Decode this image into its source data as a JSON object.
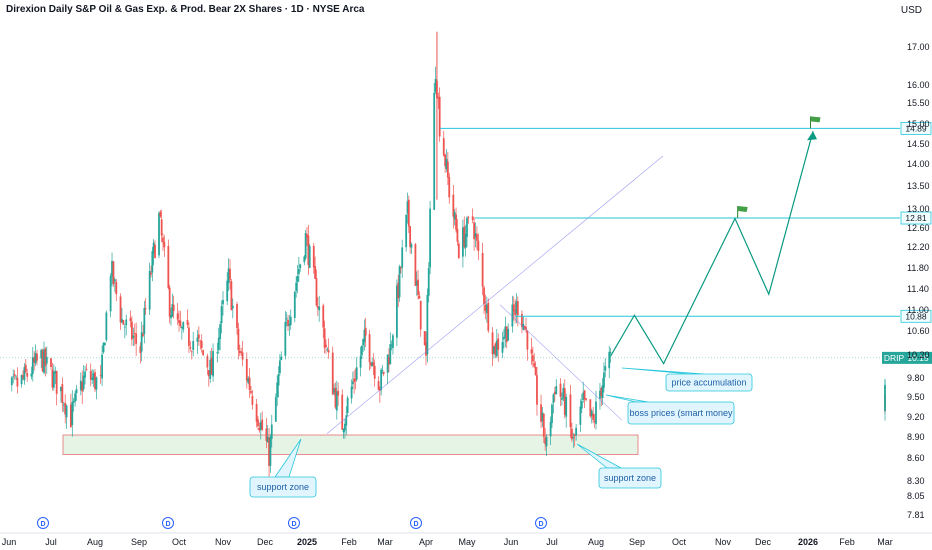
{
  "header": {
    "title": "Direxion Daily S&P Oil & Gas Exp. & Prod. Bear 2X Shares · 1D · NYSE Arca",
    "currency": "USD"
  },
  "chart_data": {
    "type": "candlestick",
    "symbol": "DRIP",
    "last_price": "10.15",
    "y_ticks": [
      "17.00",
      "16.00",
      "15.50",
      "15.00",
      "14.50",
      "14.00",
      "13.50",
      "13.00",
      "12.60",
      "12.20",
      "11.80",
      "11.40",
      "11.00",
      "10.60",
      "10.20",
      "9.80",
      "9.50",
      "9.20",
      "8.90",
      "8.60",
      "8.30",
      "8.05",
      "7.81"
    ],
    "x_ticks": [
      {
        "label": "Jun",
        "bold": false
      },
      {
        "label": "Jul",
        "bold": false
      },
      {
        "label": "Aug",
        "bold": false
      },
      {
        "label": "Sep",
        "bold": false
      },
      {
        "label": "Oct",
        "bold": false
      },
      {
        "label": "Nov",
        "bold": false
      },
      {
        "label": "Dec",
        "bold": false
      },
      {
        "label": "2025",
        "bold": true
      },
      {
        "label": "Feb",
        "bold": false
      },
      {
        "label": "Mar",
        "bold": false
      },
      {
        "label": "Apr",
        "bold": false
      },
      {
        "label": "May",
        "bold": false
      },
      {
        "label": "Jun",
        "bold": false
      },
      {
        "label": "Jul",
        "bold": false
      },
      {
        "label": "Aug",
        "bold": false
      },
      {
        "label": "Sep",
        "bold": false
      },
      {
        "label": "Oct",
        "bold": false
      },
      {
        "label": "Nov",
        "bold": false
      },
      {
        "label": "Dec",
        "bold": false
      },
      {
        "label": "2026",
        "bold": true
      },
      {
        "label": "Feb",
        "bold": false
      },
      {
        "label": "Mar",
        "bold": false
      }
    ],
    "price_levels": [
      {
        "value": 14.89,
        "label": "14.89"
      },
      {
        "value": 12.81,
        "label": "12.81"
      },
      {
        "value": 10.88,
        "label": "10.88"
      }
    ],
    "dividend_marker": "D",
    "annotations": [
      "price accumulation",
      "boss prices (smart money",
      "support zone",
      "support zone"
    ],
    "colors": {
      "up": "#26a69a",
      "down": "#ef5350",
      "level": "#26c6da",
      "projection": "#089981",
      "support_fill": "#e6f4e6",
      "support_border": "#e57373",
      "callout_fill": "#e1f5fe",
      "callout_border": "#26c6da",
      "dividend": "#2962ff"
    },
    "projection_path": [
      {
        "date": "2025-08-12",
        "price": 10.18
      },
      {
        "date": "2025-08-30",
        "price": 10.9
      },
      {
        "date": "2025-09-20",
        "price": 10.05
      },
      {
        "date": "2025-11-10",
        "price": 12.8
      },
      {
        "date": "2025-12-05",
        "price": 11.3
      },
      {
        "date": "2026-01-05",
        "price": 14.82
      }
    ],
    "flags": [
      {
        "date": "2025-11-12",
        "price": 12.81
      },
      {
        "date": "2026-01-03",
        "price": 14.89
      }
    ]
  }
}
